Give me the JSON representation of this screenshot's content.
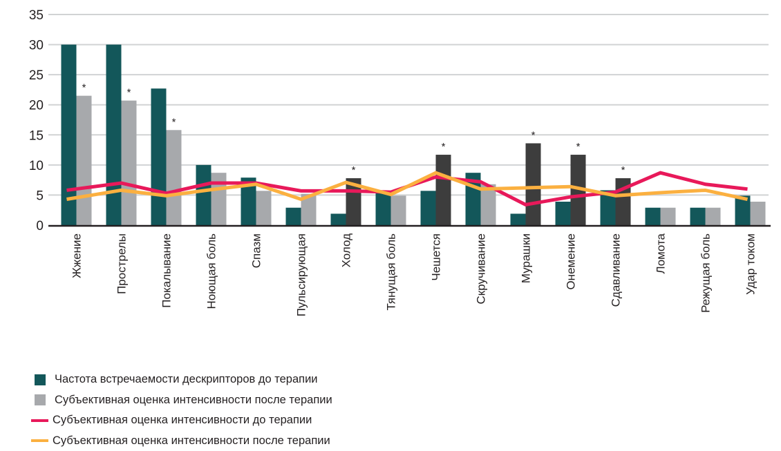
{
  "chart_data": {
    "type": "bar",
    "title": "",
    "xlabel": "",
    "ylabel": "",
    "ylim": [
      0,
      35
    ],
    "yticks": [
      0,
      5,
      10,
      15,
      20,
      25,
      30,
      35
    ],
    "grid": true,
    "legend_position": "bottom-left",
    "categories": [
      "Жжение",
      "Прострелы",
      "Покалывание",
      "Ноющая боль",
      "Спазм",
      "Пульсирующая",
      "Холод",
      "Тянущая боль",
      "Чешется",
      "Скручивание",
      "Мурашки",
      "Онемение",
      "Сдавливание",
      "Ломота",
      "Режущая боль",
      "Удар током"
    ],
    "series": [
      {
        "name": "Частота встречаемости дескрипторов до терапии",
        "kind": "bar",
        "color": "#13575a",
        "values": [
          30,
          30,
          22.7,
          10,
          7.9,
          2.9,
          1.9,
          5.6,
          5.7,
          8.7,
          1.9,
          3.9,
          5.8,
          2.9,
          2.9,
          4.9
        ]
      },
      {
        "name": "Субъективная оценка интенсивности после терапии",
        "kind": "bar",
        "color": "#a7a9ac",
        "highlight_color": "#3d3d3d",
        "values": [
          21.5,
          20.7,
          15.8,
          8.7,
          5.7,
          5.2,
          7.8,
          4.9,
          11.7,
          6.8,
          13.6,
          11.7,
          7.8,
          2.9,
          2.9,
          3.9
        ],
        "highlighted": [
          false,
          false,
          false,
          false,
          false,
          false,
          true,
          false,
          true,
          false,
          true,
          true,
          true,
          false,
          false,
          false
        ]
      },
      {
        "name": "Субъективная оценка интенсивности до терапии",
        "kind": "line",
        "color": "#e8195a",
        "values": [
          5.8,
          7.0,
          5.3,
          7.0,
          7.0,
          5.7,
          5.7,
          5.5,
          8.0,
          7.2,
          3.4,
          4.7,
          5.5,
          8.7,
          6.8,
          6.0
        ]
      },
      {
        "name": "Субъективная оценка интенсивности после терапии",
        "kind": "line",
        "color": "#fbb040",
        "values": [
          4.3,
          5.8,
          4.9,
          5.9,
          6.8,
          4.3,
          7.1,
          5.1,
          8.7,
          6.0,
          6.2,
          6.4,
          4.9,
          5.4,
          5.8,
          4.3
        ]
      }
    ],
    "significance_marker": "*",
    "significant": [
      true,
      true,
      true,
      false,
      false,
      false,
      true,
      false,
      true,
      false,
      true,
      true,
      true,
      false,
      false,
      false
    ]
  },
  "legend": [
    {
      "label": "Частота встречаемости дескрипторов до терапии",
      "type": "box",
      "color": "#13575a"
    },
    {
      "label": "Субъективная оценка интенсивности после терапии",
      "type": "box",
      "color": "#a7a9ac"
    },
    {
      "label": "Субъективная оценка интенсивности до терапии",
      "type": "line",
      "color": "#e8195a"
    },
    {
      "label": "Субъективная оценка интенсивности после терапии",
      "type": "line",
      "color": "#fbb040"
    }
  ]
}
